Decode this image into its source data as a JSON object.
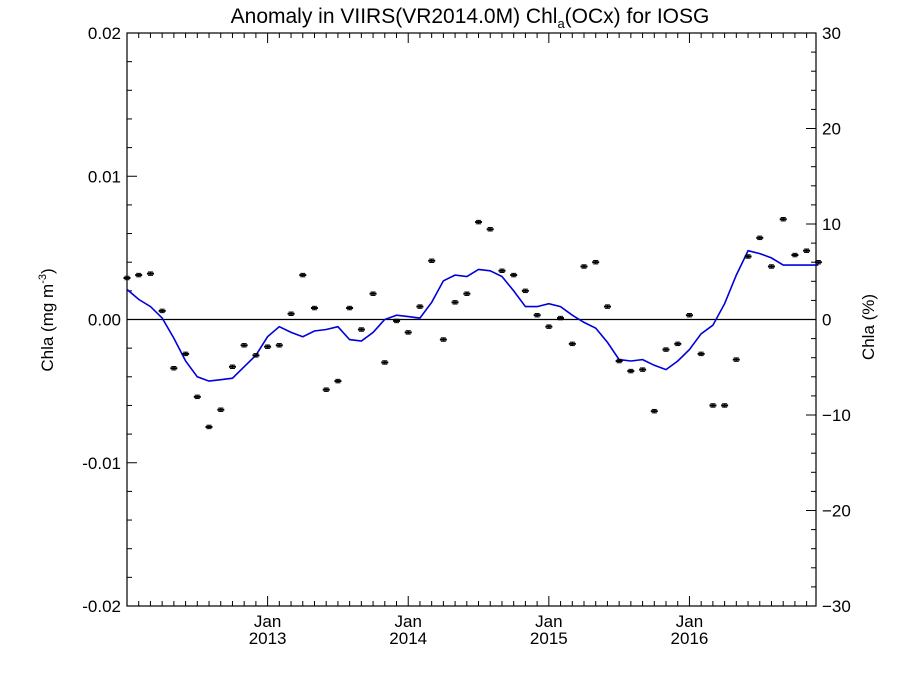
{
  "chart_data": {
    "type": "line",
    "title_main": "Anomaly in VIIRS(VR2014.0M) Chl",
    "title_sub": "a",
    "title_tail": "(OCx) for IOSG",
    "ylabel_left_main": "Chla (mg m",
    "ylabel_left_sup": "-3",
    "ylabel_left_tail": ")",
    "ylabel_right": "Chla (%)",
    "ylim_left": [
      -0.02,
      0.02
    ],
    "ylim_right": [
      -30,
      30
    ],
    "xlim": [
      2012.0,
      2016.9
    ],
    "left_ticks": [
      "0.02",
      "0.01",
      "0.00",
      "-0.01",
      "-0.02"
    ],
    "left_tick_values": [
      0.02,
      0.01,
      0.0,
      -0.01,
      -0.02
    ],
    "right_ticks": [
      "30",
      "20",
      "10",
      "0",
      "-10",
      "-20",
      "-30"
    ],
    "right_tick_values": [
      30,
      20,
      10,
      0,
      -10,
      -20,
      -30
    ],
    "x_ticks": [
      {
        "x": 2013.0,
        "month": "Jan",
        "year": "2013"
      },
      {
        "x": 2014.0,
        "month": "Jan",
        "year": "2014"
      },
      {
        "x": 2015.0,
        "month": "Jan",
        "year": "2015"
      },
      {
        "x": 2016.0,
        "month": "Jan",
        "year": "2016"
      }
    ],
    "zero_line": 0,
    "series": [
      {
        "kind": "monthly_points_with_errorbars",
        "color": "#000000",
        "error": 0.00012,
        "x": [
          2012.0,
          2012.083,
          2012.167,
          2012.25,
          2012.333,
          2012.417,
          2012.5,
          2012.583,
          2012.667,
          2012.75,
          2012.833,
          2012.917,
          2013.0,
          2013.083,
          2013.167,
          2013.25,
          2013.333,
          2013.417,
          2013.5,
          2013.583,
          2013.667,
          2013.75,
          2013.833,
          2013.917,
          2014.0,
          2014.083,
          2014.167,
          2014.25,
          2014.333,
          2014.417,
          2014.5,
          2014.583,
          2014.667,
          2014.75,
          2014.833,
          2014.917,
          2015.0,
          2015.083,
          2015.167,
          2015.25,
          2015.333,
          2015.417,
          2015.5,
          2015.583,
          2015.667,
          2015.75,
          2015.833,
          2015.917,
          2016.0,
          2016.083,
          2016.167,
          2016.25,
          2016.333,
          2016.417,
          2016.5,
          2016.583,
          2016.667,
          2016.75,
          2016.833,
          2016.917
        ],
        "y": [
          0.0029,
          0.0031,
          0.0032,
          0.0006,
          -0.0034,
          -0.0024,
          -0.0054,
          -0.0075,
          -0.0063,
          -0.0033,
          -0.0018,
          -0.0025,
          -0.0019,
          -0.0018,
          0.0004,
          0.0031,
          0.0008,
          -0.0049,
          -0.0043,
          0.0008,
          -0.0007,
          0.0018,
          -0.003,
          -0.0001,
          -0.0009,
          0.0009,
          0.0041,
          -0.0014,
          0.0012,
          0.0018,
          0.0068,
          0.0063,
          0.0034,
          0.0031,
          0.002,
          0.0003,
          -0.0005,
          0.0001,
          -0.0017,
          0.0037,
          0.004,
          0.0009,
          -0.0029,
          -0.0036,
          -0.0035,
          -0.0064,
          -0.0021,
          -0.0017,
          0.0003,
          -0.0024,
          -0.006,
          -0.006,
          -0.0028,
          0.0044,
          0.0057,
          0.0037,
          0.007,
          0.0045,
          0.0048,
          0.004
        ]
      },
      {
        "kind": "running_mean",
        "color": "#0000dd",
        "x": [
          2012.0,
          2012.083,
          2012.167,
          2012.25,
          2012.333,
          2012.417,
          2012.5,
          2012.583,
          2012.667,
          2012.75,
          2012.833,
          2012.917,
          2013.0,
          2013.083,
          2013.167,
          2013.25,
          2013.333,
          2013.417,
          2013.5,
          2013.583,
          2013.667,
          2013.75,
          2013.833,
          2013.917,
          2014.0,
          2014.083,
          2014.167,
          2014.25,
          2014.333,
          2014.417,
          2014.5,
          2014.583,
          2014.667,
          2014.75,
          2014.833,
          2014.917,
          2015.0,
          2015.083,
          2015.167,
          2015.25,
          2015.333,
          2015.417,
          2015.5,
          2015.583,
          2015.667,
          2015.75,
          2015.833,
          2015.917,
          2016.0,
          2016.083,
          2016.167,
          2016.25,
          2016.333,
          2016.417,
          2016.5,
          2016.583,
          2016.667,
          2016.75,
          2016.833,
          2016.917
        ],
        "y": [
          0.0021,
          0.0014,
          0.0009,
          0.0001,
          -0.0013,
          -0.0029,
          -0.004,
          -0.0043,
          -0.0042,
          -0.0041,
          -0.0033,
          -0.0025,
          -0.0012,
          -0.0005,
          -0.0009,
          -0.0012,
          -0.0008,
          -0.0007,
          -0.0005,
          -0.0014,
          -0.0015,
          -0.0009,
          0.0,
          0.0003,
          0.0002,
          0.0001,
          0.0012,
          0.0027,
          0.0031,
          0.003,
          0.0035,
          0.0034,
          0.003,
          0.002,
          0.0009,
          0.0009,
          0.0011,
          0.0009,
          0.0003,
          -0.0002,
          -0.0006,
          -0.0016,
          -0.0028,
          -0.0029,
          -0.0028,
          -0.0032,
          -0.0035,
          -0.0029,
          -0.0021,
          -0.001,
          -0.0004,
          0.0011,
          0.0031,
          0.0048,
          0.0046,
          0.0043,
          0.0038,
          0.0038,
          0.0038,
          0.0038
        ]
      }
    ]
  }
}
